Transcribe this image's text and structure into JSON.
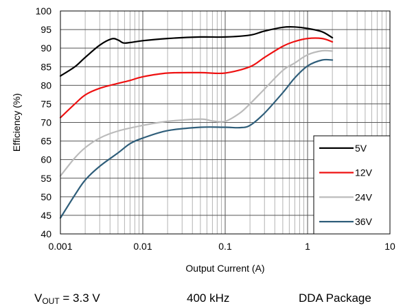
{
  "chart_data": {
    "type": "line",
    "xlabel": "Output Current (A)",
    "ylabel": "Efficiency (%)",
    "xscale": "log",
    "xlim": [
      0.001,
      10
    ],
    "ylim": [
      40,
      100
    ],
    "x_ticks": [
      "0.001",
      "0.01",
      "0.1",
      "1",
      "10"
    ],
    "y_ticks": [
      "40",
      "45",
      "50",
      "55",
      "60",
      "65",
      "70",
      "75",
      "80",
      "85",
      "90",
      "95",
      "100"
    ],
    "grid": true,
    "legend_position": "bottom-right",
    "series": [
      {
        "name": "5V",
        "color": "#000000",
        "points": [
          [
            0.001,
            82.5
          ],
          [
            0.0015,
            85
          ],
          [
            0.002,
            87.5
          ],
          [
            0.003,
            90.8
          ],
          [
            0.0042,
            92.5
          ],
          [
            0.005,
            92.2
          ],
          [
            0.0058,
            91.4
          ],
          [
            0.007,
            91.5
          ],
          [
            0.01,
            92
          ],
          [
            0.02,
            92.6
          ],
          [
            0.05,
            93
          ],
          [
            0.1,
            93
          ],
          [
            0.2,
            93.5
          ],
          [
            0.3,
            94.6
          ],
          [
            0.5,
            95.6
          ],
          [
            0.7,
            95.7
          ],
          [
            1.0,
            95.3
          ],
          [
            1.5,
            94.4
          ],
          [
            2.0,
            92.8
          ]
        ]
      },
      {
        "name": "12V",
        "color": "#ee1111",
        "points": [
          [
            0.001,
            71.3
          ],
          [
            0.0015,
            75
          ],
          [
            0.002,
            77.4
          ],
          [
            0.003,
            79.2
          ],
          [
            0.005,
            80.5
          ],
          [
            0.007,
            81.3
          ],
          [
            0.01,
            82.3
          ],
          [
            0.02,
            83.3
          ],
          [
            0.05,
            83.4
          ],
          [
            0.1,
            83.3
          ],
          [
            0.2,
            85
          ],
          [
            0.3,
            87.5
          ],
          [
            0.5,
            90.5
          ],
          [
            0.7,
            91.8
          ],
          [
            1.0,
            92.6
          ],
          [
            1.5,
            92.6
          ],
          [
            2.0,
            91.7
          ]
        ]
      },
      {
        "name": "24V",
        "color": "#bbbbbb",
        "points": [
          [
            0.001,
            55.6
          ],
          [
            0.0015,
            60.5
          ],
          [
            0.002,
            63.2
          ],
          [
            0.003,
            65.8
          ],
          [
            0.005,
            67.7
          ],
          [
            0.01,
            69.2
          ],
          [
            0.02,
            70.3
          ],
          [
            0.05,
            70.9
          ],
          [
            0.07,
            70.4
          ],
          [
            0.1,
            70.3
          ],
          [
            0.15,
            72.5
          ],
          [
            0.2,
            75
          ],
          [
            0.3,
            79
          ],
          [
            0.5,
            84
          ],
          [
            0.7,
            86
          ],
          [
            1.0,
            88.2
          ],
          [
            1.5,
            89.3
          ],
          [
            2.0,
            89.2
          ]
        ]
      },
      {
        "name": "36V",
        "color": "#2f5e7a",
        "points": [
          [
            0.001,
            44.3
          ],
          [
            0.0015,
            50.5
          ],
          [
            0.002,
            54.5
          ],
          [
            0.003,
            58.2
          ],
          [
            0.005,
            61.8
          ],
          [
            0.007,
            64.3
          ],
          [
            0.01,
            65.8
          ],
          [
            0.02,
            67.8
          ],
          [
            0.05,
            68.7
          ],
          [
            0.1,
            68.7
          ],
          [
            0.15,
            68.6
          ],
          [
            0.2,
            69.2
          ],
          [
            0.3,
            72.5
          ],
          [
            0.5,
            78
          ],
          [
            0.7,
            82
          ],
          [
            1.0,
            85.2
          ],
          [
            1.5,
            86.8
          ],
          [
            2.0,
            86.8
          ]
        ]
      }
    ]
  },
  "conditions": {
    "vout_prefix": "V",
    "vout_sub": "OUT",
    "vout_value": " = 3.3 V",
    "frequency": "400 kHz",
    "package": "DDA Package"
  }
}
